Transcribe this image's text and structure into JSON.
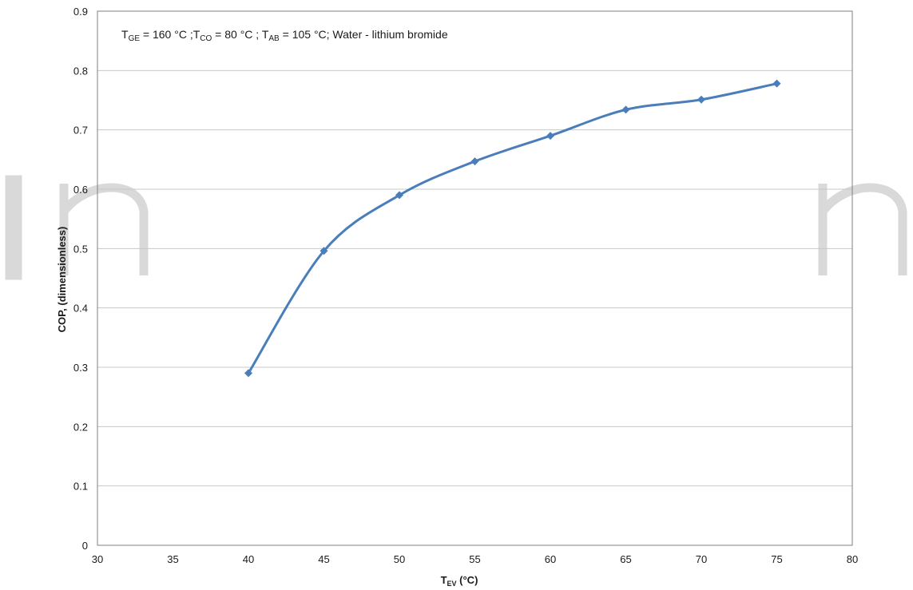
{
  "chart_data": {
    "type": "line",
    "title_parts": {
      "t1": "T",
      "t1_sub": "GE",
      "t1_rest": " = 160 °C ;",
      "t2": "T",
      "t2_sub": "CO",
      "t2_rest": " = 80 °C ; ",
      "t3": "T",
      "t3_sub": "AB",
      "t3_rest": " = 105 °C;  Water - lithium bromide"
    },
    "xlabel": {
      "main": "T",
      "sub": "EV",
      "rest": " (°C)"
    },
    "ylabel": "COP, (dimensionless)",
    "xlim": [
      30,
      80
    ],
    "ylim": [
      0,
      0.9
    ],
    "x_ticks": [
      "30",
      "35",
      "40",
      "45",
      "50",
      "55",
      "60",
      "65",
      "70",
      "75",
      "80"
    ],
    "y_ticks": [
      "0",
      "0.1",
      "0.2",
      "0.3",
      "0.4",
      "0.5",
      "0.6",
      "0.7",
      "0.8",
      "0.9"
    ],
    "grid": "horizontal",
    "marker": "diamond",
    "series": [
      {
        "x": [
          40,
          45,
          50,
          55,
          60,
          65,
          70,
          75
        ],
        "values": [
          0.29,
          0.496,
          0.59,
          0.647,
          0.69,
          0.734,
          0.751,
          0.778
        ]
      }
    ],
    "colors": {
      "series": "#4a7ebb",
      "grid": "#c8c8c8",
      "frame": "#7f7f7f",
      "watermark": "#d9d9d9"
    }
  }
}
